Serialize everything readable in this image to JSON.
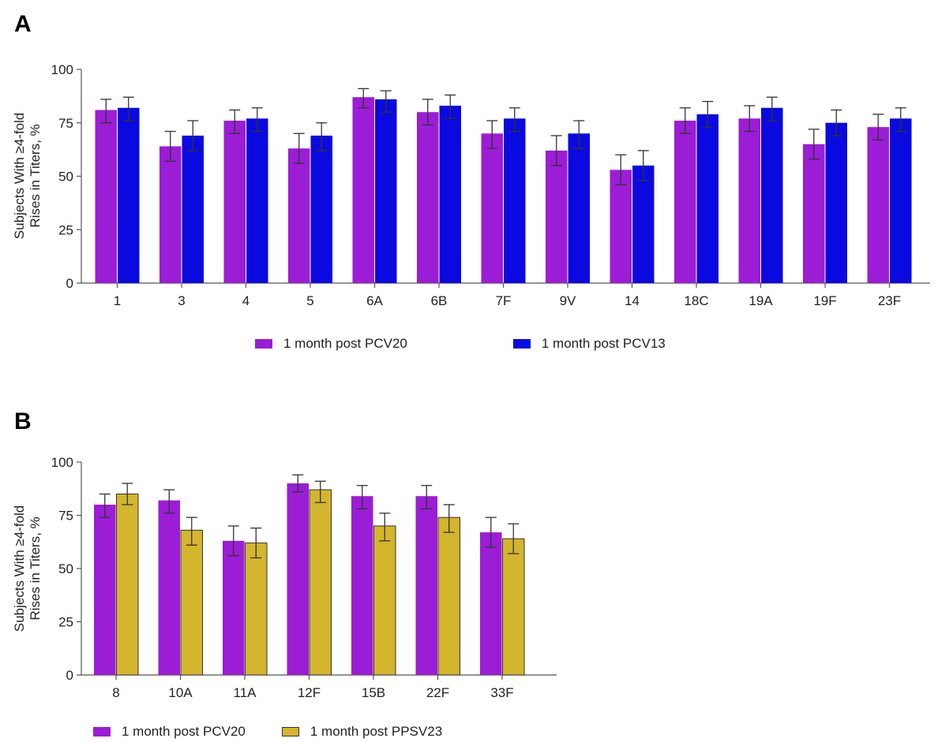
{
  "panels": {
    "a": {
      "letter": "A"
    },
    "b": {
      "letter": "B"
    }
  },
  "colors": {
    "pcv20": "#9b1dd6",
    "pcv13": "#0a0ae0",
    "ppsv23": "#d4b52e",
    "axis": "#555555",
    "errorbar": "#333333"
  },
  "chart_data": [
    {
      "type": "bar",
      "panel": "A",
      "ylabel": [
        "Subjects With ≥4-fold",
        "Rises in Titers, %"
      ],
      "xlabel": "",
      "ylim": [
        0,
        100
      ],
      "yticks": [
        0,
        25,
        50,
        75,
        100
      ],
      "categories": [
        "1",
        "3",
        "4",
        "5",
        "6A",
        "6B",
        "7F",
        "9V",
        "14",
        "18C",
        "19A",
        "19F",
        "23F"
      ],
      "series": [
        {
          "name": "1 month post PCV20",
          "color_key": "pcv20",
          "values": [
            81,
            64,
            76,
            63,
            87,
            80,
            70,
            62,
            53,
            76,
            77,
            65,
            73
          ],
          "err_low": [
            75,
            57,
            70,
            56,
            82,
            74,
            63,
            55,
            46,
            70,
            71,
            58,
            67
          ],
          "err_high": [
            86,
            71,
            81,
            70,
            91,
            86,
            76,
            69,
            60,
            82,
            83,
            72,
            79
          ]
        },
        {
          "name": "1 month post PCV13",
          "color_key": "pcv13",
          "values": [
            82,
            69,
            77,
            69,
            86,
            83,
            77,
            70,
            55,
            79,
            82,
            75,
            77
          ],
          "err_low": [
            76,
            62,
            71,
            62,
            80,
            77,
            71,
            63,
            48,
            73,
            76,
            69,
            71
          ],
          "err_high": [
            87,
            76,
            82,
            75,
            90,
            88,
            82,
            76,
            62,
            85,
            87,
            81,
            82
          ]
        }
      ],
      "legend_position": "bottom"
    },
    {
      "type": "bar",
      "panel": "B",
      "ylabel": [
        "Subjects With ≥4-fold",
        "Rises in Titers, %"
      ],
      "xlabel": "",
      "ylim": [
        0,
        100
      ],
      "yticks": [
        0,
        25,
        50,
        75,
        100
      ],
      "categories": [
        "8",
        "10A",
        "11A",
        "12F",
        "15B",
        "22F",
        "33F"
      ],
      "series": [
        {
          "name": "1 month post PCV20",
          "color_key": "pcv20",
          "values": [
            80,
            82,
            63,
            90,
            84,
            84,
            67
          ],
          "err_low": [
            74,
            76,
            56,
            86,
            78,
            78,
            60
          ],
          "err_high": [
            85,
            87,
            70,
            94,
            89,
            89,
            74
          ]
        },
        {
          "name": "1 month post PPSV23",
          "color_key": "ppsv23",
          "values": [
            85,
            68,
            62,
            87,
            70,
            74,
            64
          ],
          "err_low": [
            80,
            61,
            55,
            81,
            63,
            67,
            57
          ],
          "err_high": [
            90,
            74,
            69,
            91,
            76,
            80,
            71
          ]
        }
      ],
      "legend_position": "bottom"
    }
  ]
}
